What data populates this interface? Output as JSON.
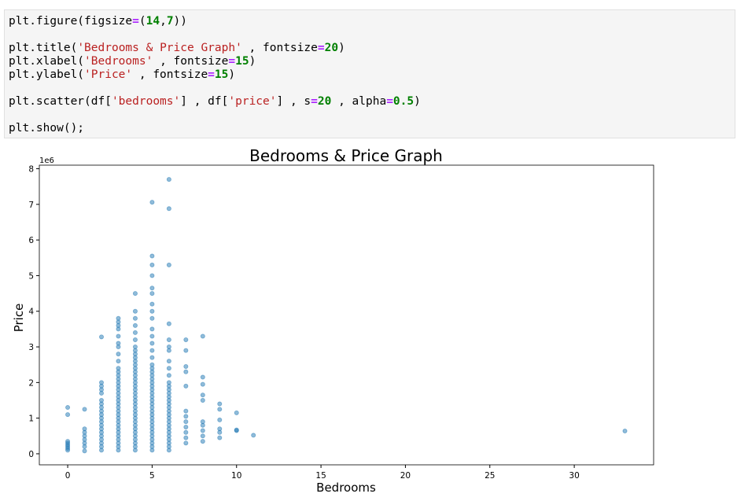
{
  "code": {
    "blocks": [
      [
        [
          {
            "text": "plt.figure(figsize",
            "style": "plain"
          },
          {
            "text": "=",
            "style": "op"
          },
          {
            "text": "(",
            "style": "plain"
          },
          {
            "text": "14",
            "style": "num"
          },
          {
            "text": ",",
            "style": "plain"
          },
          {
            "text": "7",
            "style": "num"
          },
          {
            "text": "))",
            "style": "plain"
          }
        ]
      ],
      [
        [
          {
            "text": "plt.title(",
            "style": "plain"
          },
          {
            "text": "'Bedrooms & Price Graph'",
            "style": "str"
          },
          {
            "text": " , fontsize",
            "style": "plain"
          },
          {
            "text": "=",
            "style": "op"
          },
          {
            "text": "20",
            "style": "num"
          },
          {
            "text": ")",
            "style": "plain"
          }
        ],
        [
          {
            "text": "plt.xlabel(",
            "style": "plain"
          },
          {
            "text": "'Bedrooms'",
            "style": "str"
          },
          {
            "text": " , fontsize",
            "style": "plain"
          },
          {
            "text": "=",
            "style": "op"
          },
          {
            "text": "15",
            "style": "num"
          },
          {
            "text": ")",
            "style": "plain"
          }
        ],
        [
          {
            "text": "plt.ylabel(",
            "style": "plain"
          },
          {
            "text": "'Price'",
            "style": "str"
          },
          {
            "text": " , fontsize",
            "style": "plain"
          },
          {
            "text": "=",
            "style": "op"
          },
          {
            "text": "15",
            "style": "num"
          },
          {
            "text": ")",
            "style": "plain"
          }
        ]
      ],
      [
        [
          {
            "text": "plt.scatter(df[",
            "style": "plain"
          },
          {
            "text": "'bedrooms'",
            "style": "str"
          },
          {
            "text": "] , df[",
            "style": "plain"
          },
          {
            "text": "'price'",
            "style": "str"
          },
          {
            "text": "] , s",
            "style": "plain"
          },
          {
            "text": "=",
            "style": "op"
          },
          {
            "text": "20",
            "style": "num"
          },
          {
            "text": " , alpha",
            "style": "plain"
          },
          {
            "text": "=",
            "style": "op"
          },
          {
            "text": "0.5",
            "style": "num"
          },
          {
            "text": ")",
            "style": "plain"
          }
        ]
      ],
      [
        [
          {
            "text": "plt.show();",
            "style": "plain"
          }
        ]
      ]
    ]
  },
  "chart_data": {
    "type": "scatter",
    "title": "Bedrooms & Price Graph",
    "x_label": "Bedrooms",
    "y_label": "Price",
    "y_offset_label": "1e6",
    "color": "#1f77b4",
    "alpha": 0.5,
    "xlim": [
      -1.68,
      34.7
    ],
    "xticks": [
      0,
      5,
      10,
      15,
      20,
      25,
      30
    ],
    "ylim": [
      -0.31,
      8.1
    ],
    "yticks": [
      0,
      1,
      2,
      3,
      4,
      5,
      6,
      7,
      8
    ],
    "groups": [
      {
        "x": 0,
        "y": [
          0.1,
          0.15,
          0.2,
          0.25,
          0.3,
          0.35,
          1.1,
          1.3
        ]
      },
      {
        "x": 1,
        "y": [
          0.08,
          0.2,
          0.3,
          0.4,
          0.5,
          0.6,
          0.7,
          1.25
        ]
      },
      {
        "x": 2,
        "y": [
          0.1,
          0.2,
          0.3,
          0.4,
          0.5,
          0.6,
          0.7,
          0.8,
          0.9,
          1.0,
          1.1,
          1.2,
          1.3,
          1.4,
          1.5,
          1.7,
          1.8,
          1.9,
          2.0,
          3.28
        ]
      },
      {
        "x": 3,
        "y": [
          0.1,
          0.2,
          0.3,
          0.4,
          0.5,
          0.6,
          0.7,
          0.8,
          0.9,
          1.0,
          1.1,
          1.2,
          1.3,
          1.4,
          1.5,
          1.6,
          1.7,
          1.8,
          1.9,
          2.0,
          2.1,
          2.2,
          2.3,
          2.4,
          2.6,
          2.8,
          3.0,
          3.1,
          3.3,
          3.5,
          3.6,
          3.7,
          3.8
        ]
      },
      {
        "x": 4,
        "y": [
          0.1,
          0.2,
          0.3,
          0.4,
          0.5,
          0.6,
          0.7,
          0.8,
          0.9,
          1.0,
          1.1,
          1.2,
          1.3,
          1.4,
          1.5,
          1.6,
          1.7,
          1.8,
          1.9,
          2.0,
          2.1,
          2.2,
          2.3,
          2.4,
          2.5,
          2.6,
          2.7,
          2.8,
          2.9,
          3.0,
          3.2,
          3.4,
          3.6,
          3.8,
          4.0,
          4.5
        ]
      },
      {
        "x": 5,
        "y": [
          0.1,
          0.2,
          0.3,
          0.4,
          0.5,
          0.6,
          0.7,
          0.8,
          0.9,
          1.0,
          1.1,
          1.2,
          1.3,
          1.4,
          1.5,
          1.6,
          1.7,
          1.8,
          1.9,
          2.0,
          2.1,
          2.2,
          2.3,
          2.4,
          2.5,
          2.7,
          2.9,
          3.1,
          3.3,
          3.5,
          3.8,
          4.0,
          4.2,
          4.5,
          4.65,
          5.0,
          5.3,
          5.55,
          7.06
        ]
      },
      {
        "x": 6,
        "y": [
          0.1,
          0.2,
          0.3,
          0.4,
          0.5,
          0.6,
          0.7,
          0.8,
          0.9,
          1.0,
          1.1,
          1.2,
          1.3,
          1.4,
          1.5,
          1.6,
          1.7,
          1.8,
          1.9,
          2.0,
          2.2,
          2.4,
          2.6,
          2.9,
          3.0,
          3.2,
          3.65,
          5.3,
          6.88,
          7.7
        ]
      },
      {
        "x": 7,
        "y": [
          0.3,
          0.45,
          0.6,
          0.75,
          0.9,
          1.05,
          1.2,
          1.9,
          2.3,
          2.45,
          2.9,
          3.2
        ]
      },
      {
        "x": 8,
        "y": [
          0.35,
          0.5,
          0.65,
          0.8,
          0.9,
          1.5,
          1.65,
          1.95,
          2.15,
          3.3
        ]
      },
      {
        "x": 9,
        "y": [
          0.45,
          0.6,
          0.7,
          0.95,
          1.25,
          1.4
        ]
      },
      {
        "x": 10,
        "y": [
          0.65,
          0.67,
          1.15
        ]
      },
      {
        "x": 11,
        "y": [
          0.52
        ]
      },
      {
        "x": 33,
        "y": [
          0.64
        ]
      }
    ]
  }
}
